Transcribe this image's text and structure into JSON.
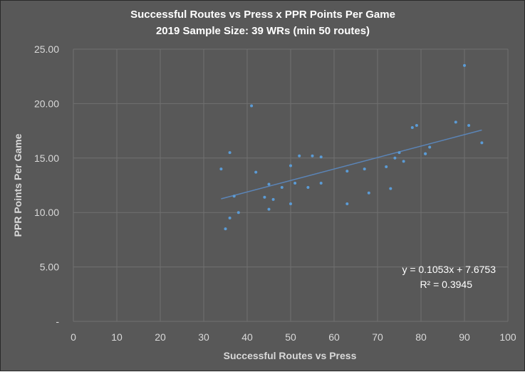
{
  "chart_data": {
    "type": "scatter",
    "title": "Successful Routes vs Press x PPR Points Per Game",
    "subtitle": "2019 Sample Size: 39 WRs (min 50 routes)",
    "xlabel": "Successful Routes vs Press",
    "ylabel": "PPR Points Per Game",
    "xlim": [
      0,
      100
    ],
    "ylim": [
      0,
      25
    ],
    "x_ticks": [
      "0",
      "10",
      "20",
      "30",
      "40",
      "50",
      "60",
      "70",
      "80",
      "90",
      "100"
    ],
    "y_ticks": [
      "-",
      "5.00",
      "10.00",
      "15.00",
      "20.00",
      "25.00"
    ],
    "grid": true,
    "legend": "none",
    "trendline": {
      "type": "linear",
      "slope": 0.1053,
      "intercept": 7.6753,
      "equation_label": "y = 0.1053x + 7.6753",
      "r2_label": "R² = 0.3945"
    },
    "x": [
      34,
      35,
      36,
      36,
      37,
      38,
      41,
      42,
      44,
      45,
      45,
      46,
      48,
      50,
      50,
      51,
      52,
      54,
      55,
      57,
      57,
      63,
      63,
      67,
      68,
      72,
      73,
      74,
      75,
      76,
      78,
      79,
      81,
      81,
      82,
      88,
      90,
      91,
      94
    ],
    "y": [
      14.0,
      8.5,
      9.5,
      15.5,
      11.5,
      10.0,
      19.8,
      13.7,
      11.4,
      12.6,
      10.3,
      11.2,
      12.3,
      10.8,
      14.3,
      12.7,
      15.2,
      12.3,
      15.2,
      12.7,
      15.1,
      13.8,
      10.8,
      14.0,
      11.8,
      14.2,
      12.2,
      15.0,
      15.5,
      14.7,
      17.8,
      18.0,
      15.4,
      15.4,
      16.0,
      18.3,
      23.5,
      18.0,
      16.4
    ]
  },
  "colors": {
    "background": "#585858",
    "gridline": "#707070",
    "point": "#5b9bd5",
    "trendline": "#5b85b8"
  }
}
